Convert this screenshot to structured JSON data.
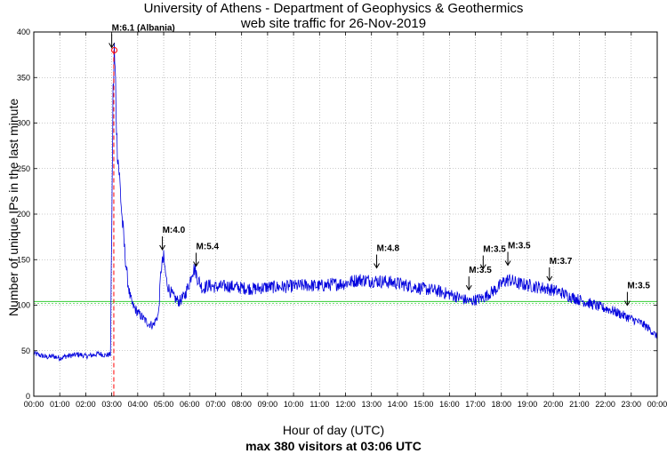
{
  "chart_data": {
    "type": "line",
    "title": "University of Athens - Department of Geophysics & Geothermics",
    "subtitle": "web site traffic for 26-Nov-2019",
    "xlabel": "Hour of day (UTC)",
    "xlabel2": "max 380 visitors at 03:06 UTC",
    "ylabel": "Number of unique IPs in the last minute",
    "xlim": [
      0,
      24
    ],
    "ylim": [
      0,
      400
    ],
    "grid": true,
    "xticks": [
      "00:00",
      "01:00",
      "02:00",
      "03:00",
      "04:00",
      "05:00",
      "06:00",
      "07:00",
      "08:00",
      "09:00",
      "10:00",
      "11:00",
      "12:00",
      "13:00",
      "14:00",
      "15:00",
      "16:00",
      "17:00",
      "18:00",
      "19:00",
      "20:00",
      "21:00",
      "22:00",
      "23:00",
      "00:00"
    ],
    "yticks": [
      "0",
      "50",
      "100",
      "150",
      "200",
      "250",
      "300",
      "350",
      "400"
    ],
    "reference_line_y": 104,
    "max_point": {
      "x": 3.1,
      "y": 380
    },
    "max_marker_x": 3.08,
    "series": [
      {
        "color": "#0000dd",
        "x": [
          0,
          0.25,
          0.5,
          0.75,
          1,
          1.25,
          1.5,
          1.75,
          2,
          2.25,
          2.5,
          2.75,
          2.95,
          3.0,
          3.05,
          3.1,
          3.15,
          3.2,
          3.3,
          3.4,
          3.5,
          3.6,
          3.7,
          3.8,
          4.0,
          4.2,
          4.4,
          4.6,
          4.8,
          4.9,
          5.0,
          5.1,
          5.2,
          5.4,
          5.6,
          5.8,
          6.0,
          6.1,
          6.2,
          6.3,
          6.5,
          6.7,
          7.0,
          7.5,
          8.0,
          8.5,
          9.0,
          9.5,
          10.0,
          10.5,
          11.0,
          11.5,
          12.0,
          12.5,
          13.0,
          13.5,
          14.0,
          14.5,
          15.0,
          15.5,
          16.0,
          16.5,
          16.8,
          17.0,
          17.3,
          17.6,
          17.9,
          18.1,
          18.3,
          18.6,
          19.0,
          19.4,
          19.8,
          20.2,
          20.6,
          21.0,
          21.4,
          21.8,
          22.2,
          22.6,
          23.0,
          23.4,
          23.7,
          24.0
        ],
        "y": [
          47,
          45,
          43,
          44,
          42,
          44,
          45,
          46,
          44,
          45,
          47,
          45,
          46,
          180,
          330,
          378,
          340,
          280,
          240,
          195,
          160,
          130,
          110,
          100,
          92,
          86,
          80,
          78,
          90,
          140,
          152,
          128,
          118,
          108,
          104,
          110,
          125,
          138,
          140,
          130,
          118,
          122,
          120,
          121,
          119,
          118,
          120,
          120,
          121,
          122,
          121,
          123,
          124,
          128,
          127,
          126,
          124,
          121,
          118,
          116,
          112,
          107,
          104,
          106,
          108,
          114,
          120,
          126,
          128,
          124,
          122,
          120,
          118,
          115,
          110,
          106,
          102,
          98,
          95,
          90,
          85,
          80,
          74,
          65
        ]
      }
    ],
    "annotations": [
      {
        "label": "M:6.1 (Albania)",
        "x": 3.0,
        "y": 380
      },
      {
        "label": "M:4.0",
        "x": 4.95,
        "y": 158
      },
      {
        "label": "M:5.4",
        "x": 6.25,
        "y": 140
      },
      {
        "label": "M:4.8",
        "x": 13.2,
        "y": 138
      },
      {
        "label": "M:3.5",
        "x": 16.75,
        "y": 114
      },
      {
        "label": "M:3.5",
        "x": 17.3,
        "y": 137
      },
      {
        "label": "M:3.5",
        "x": 18.25,
        "y": 141
      },
      {
        "label": "M:3.7",
        "x": 19.85,
        "y": 124
      },
      {
        "label": "M:3.5",
        "x": 22.85,
        "y": 97
      }
    ]
  }
}
